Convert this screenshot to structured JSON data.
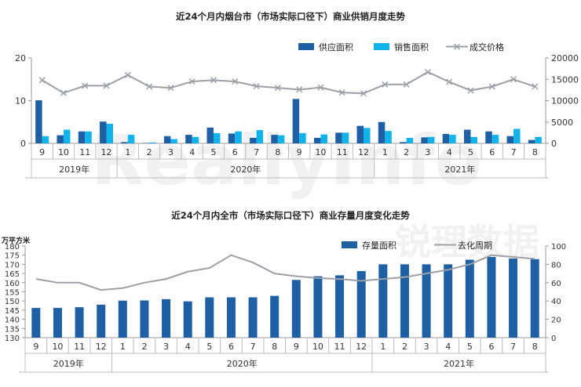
{
  "watermark": {
    "en": "ReallyInfo",
    "cn": "锐理数据"
  },
  "chart_data": [
    {
      "type": "bar",
      "title": "近24个月内烟台市（市场实际口径下）商业供销月度走势",
      "categories": [
        "9",
        "10",
        "11",
        "12",
        "1",
        "2",
        "3",
        "4",
        "5",
        "6",
        "7",
        "8",
        "9",
        "10",
        "11",
        "12",
        "1",
        "2",
        "3",
        "4",
        "5",
        "6",
        "7",
        "8"
      ],
      "year_groups": [
        {
          "label": "2019年",
          "start": 0,
          "end": 3
        },
        {
          "label": "2020年",
          "start": 4,
          "end": 15
        },
        {
          "label": "2021年",
          "start": 16,
          "end": 23
        }
      ],
      "series": [
        {
          "name": "供应面积",
          "type": "bar",
          "axis": "left",
          "color": "#1f5fa3",
          "values": [
            10.1,
            1.9,
            2.8,
            5.1,
            0.3,
            0.1,
            1.7,
            2.0,
            3.7,
            2.3,
            1.3,
            2.0,
            10.4,
            1.3,
            2.5,
            4.1,
            5.0,
            0.3,
            1.4,
            2.2,
            3.2,
            2.8,
            1.7,
            0.8
          ]
        },
        {
          "name": "销售面积",
          "type": "bar",
          "axis": "left",
          "color": "#10b4ea",
          "values": [
            1.7,
            3.2,
            2.8,
            4.6,
            2.0,
            0.2,
            1.0,
            1.5,
            2.4,
            2.8,
            3.1,
            1.9,
            2.4,
            2.1,
            2.5,
            3.6,
            2.9,
            1.3,
            1.5,
            2.0,
            1.5,
            2.0,
            3.4,
            1.5
          ]
        },
        {
          "name": "成交价格",
          "type": "line",
          "axis": "right",
          "color": "#9aa0a6",
          "values": [
            14800,
            11800,
            13500,
            13500,
            16000,
            13300,
            13000,
            14500,
            14800,
            14500,
            13400,
            13000,
            12600,
            13100,
            11900,
            11700,
            13800,
            13800,
            16700,
            14400,
            12400,
            13300,
            15000,
            13300
          ]
        }
      ],
      "y_left": {
        "min": 0,
        "max": 20,
        "ticks": [
          0,
          10,
          20
        ]
      },
      "y_right": {
        "min": 0,
        "max": 20000,
        "ticks": [
          0,
          5000,
          10000,
          15000,
          20000
        ]
      },
      "legend_position": "top-right",
      "grid": false
    },
    {
      "type": "bar",
      "title": "近24个月内全市（市场实际口径下）商业存量月度变化走势",
      "ylabel": "万平方米",
      "categories": [
        "9",
        "10",
        "11",
        "12",
        "1",
        "2",
        "3",
        "4",
        "5",
        "6",
        "7",
        "8",
        "9",
        "10",
        "11",
        "12",
        "1",
        "2",
        "3",
        "4",
        "5",
        "6",
        "7",
        "8"
      ],
      "year_groups": [
        {
          "label": "2019年",
          "start": 0,
          "end": 3
        },
        {
          "label": "2020年",
          "start": 4,
          "end": 15
        },
        {
          "label": "2021年",
          "start": 16,
          "end": 23
        }
      ],
      "series": [
        {
          "name": "存量面积",
          "type": "bar",
          "axis": "left",
          "color": "#1f5fa3",
          "values": [
            146.2,
            146.2,
            146.6,
            148.0,
            150.2,
            150.3,
            151.0,
            149.8,
            152.0,
            152.0,
            152.0,
            152.8,
            161.5,
            163.5,
            164.0,
            166.3,
            170.0,
            170.0,
            170.0,
            170.0,
            172.5,
            174.0,
            173.2,
            172.8
          ]
        },
        {
          "name": "去化周期",
          "type": "line",
          "axis": "right",
          "color": "#9aa0a6",
          "values": [
            64,
            60,
            60,
            52,
            54,
            60,
            64,
            72,
            76,
            90,
            82,
            70,
            67,
            65,
            64,
            62,
            64,
            66,
            70,
            74,
            80,
            90,
            88,
            86
          ]
        }
      ],
      "y_left": {
        "min": 130,
        "max": 180,
        "ticks": [
          130,
          135,
          140,
          145,
          150,
          155,
          160,
          165,
          170,
          175,
          180
        ]
      },
      "y_right": {
        "min": 0,
        "max": 100,
        "ticks": [
          0,
          20,
          40,
          60,
          80,
          100
        ]
      },
      "legend_position": "top-right",
      "grid": false
    }
  ]
}
